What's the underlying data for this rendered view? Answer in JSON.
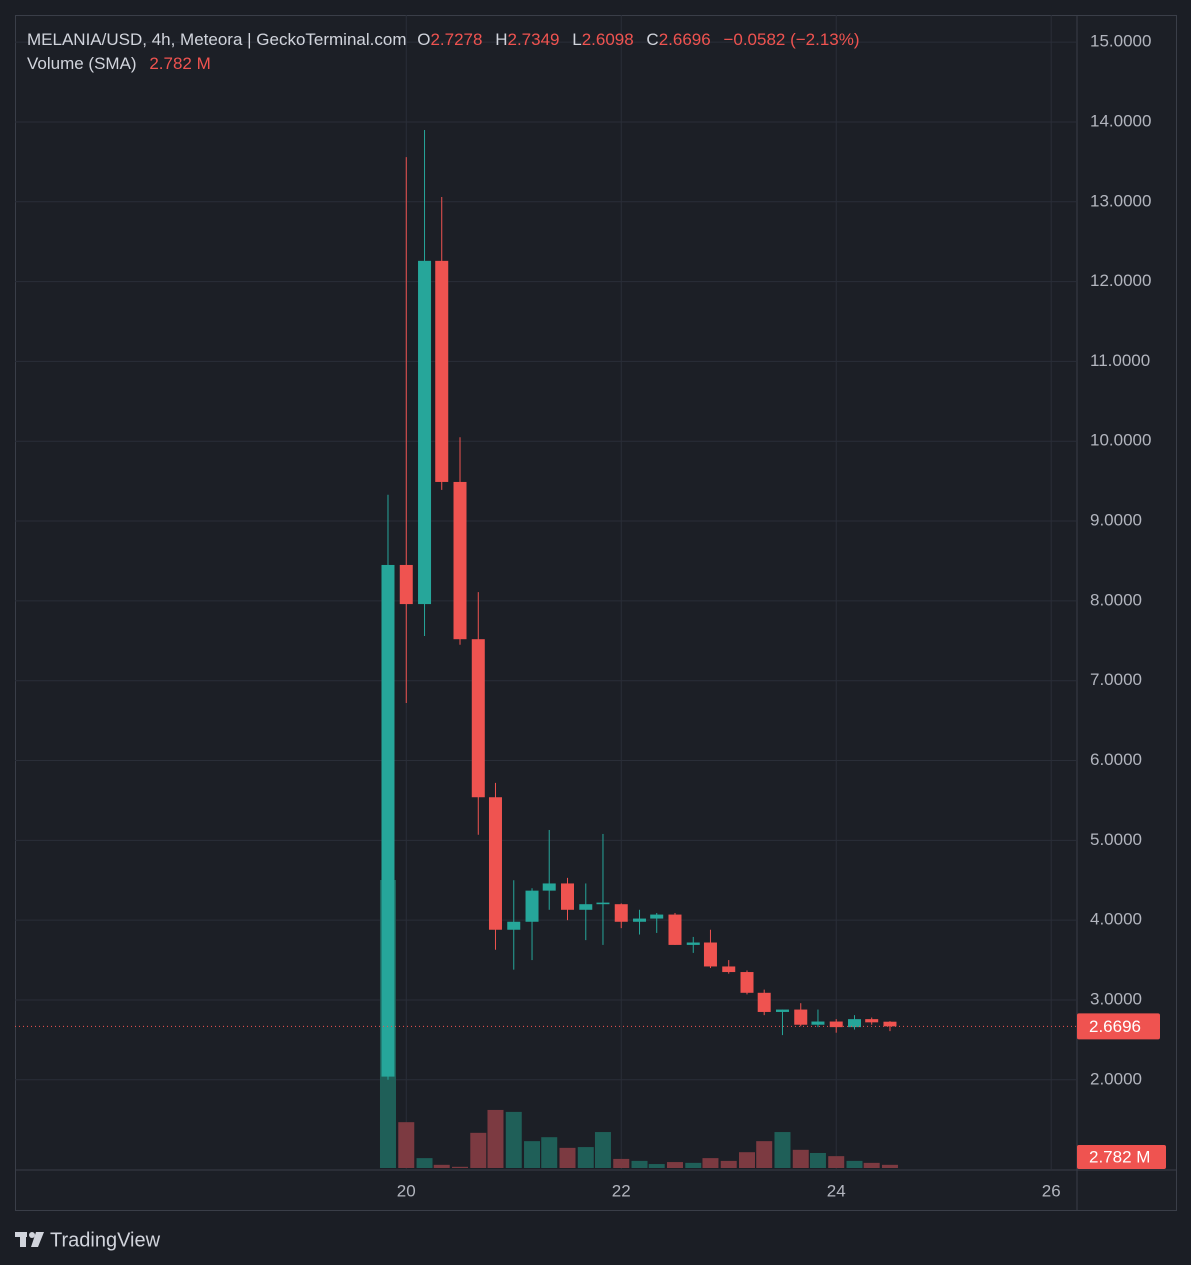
{
  "chart_data": {
    "type": "candlestick",
    "title": "MELANIA/USD, 4h, Meteora | GeckoTerminal.com",
    "ohlc_labels": [
      "O",
      "H",
      "L",
      "C"
    ],
    "change": "−0.0582 (−2.13%)",
    "volume_title": "Volume (SMA)",
    "volume_sma": 2.782,
    "volume_sma_label": "2.782 M",
    "up_color": "#26a69a",
    "down_color": "#ef5350",
    "volume_up_color": "#1f5f58",
    "volume_down_color": "#7c3a41",
    "grid": true,
    "x": [
      19.83,
      20,
      20.17,
      20.33,
      20.5,
      20.67,
      20.83,
      21,
      21.17,
      21.33,
      21.5,
      21.67,
      21.83,
      22,
      22.17,
      22.33,
      22.5,
      22.67,
      22.83,
      23,
      23.17,
      23.33,
      23.5,
      23.67,
      23.83,
      24,
      24.17,
      24.33,
      24.5
    ],
    "open": [
      2.04,
      8.45,
      7.96,
      12.26,
      9.49,
      7.52,
      5.54,
      3.88,
      3.98,
      4.37,
      4.46,
      4.13,
      4.2,
      4.2,
      3.98,
      4.02,
      4.07,
      3.69,
      3.72,
      3.42,
      3.35,
      3.09,
      2.85,
      2.88,
      2.69,
      2.73,
      2.66,
      2.76,
      2.7278
    ],
    "high": [
      9.33,
      13.56,
      13.9,
      13.06,
      10.05,
      8.11,
      5.72,
      4.5,
      4.4,
      5.13,
      4.53,
      4.46,
      5.08,
      4.21,
      4.13,
      4.09,
      4.09,
      3.79,
      3.88,
      3.5,
      3.37,
      3.13,
      2.88,
      2.96,
      2.88,
      2.76,
      2.81,
      2.78,
      2.7349
    ],
    "low": [
      2.0,
      6.72,
      7.56,
      9.39,
      7.45,
      5.07,
      3.63,
      3.38,
      3.5,
      4.13,
      4.0,
      3.75,
      3.69,
      3.9,
      3.82,
      3.84,
      3.69,
      3.59,
      3.4,
      3.33,
      3.07,
      2.81,
      2.56,
      2.67,
      2.66,
      2.59,
      2.63,
      2.69,
      2.6098
    ],
    "close": [
      8.45,
      7.96,
      12.26,
      9.49,
      7.52,
      5.54,
      3.88,
      3.98,
      4.37,
      4.46,
      4.13,
      4.2,
      4.22,
      3.98,
      4.02,
      4.07,
      3.69,
      3.72,
      3.42,
      3.35,
      3.09,
      2.85,
      2.88,
      2.69,
      2.73,
      2.66,
      2.76,
      2.72,
      2.6696
    ],
    "volume": [
      72.9,
      11.6,
      2.5,
      0.8,
      0.3,
      8.9,
      14.7,
      14.2,
      6.8,
      7.8,
      5.1,
      5.3,
      9.1,
      2.3,
      1.8,
      1.0,
      1.5,
      1.3,
      2.5,
      1.8,
      4.0,
      6.8,
      9.1,
      4.6,
      3.8,
      3.0,
      1.8,
      1.3,
      0.8
    ],
    "xlim": [
      16.36,
      26.24
    ],
    "xticks": [
      20,
      22,
      24,
      26
    ],
    "ylim": [
      0.87,
      15.34
    ],
    "yticks": [
      {
        "value": 2,
        "label": "2.0000"
      },
      {
        "value": 3,
        "label": "3.0000"
      },
      {
        "value": 4,
        "label": "4.0000"
      },
      {
        "value": 5,
        "label": "5.0000"
      },
      {
        "value": 6,
        "label": "6.0000"
      },
      {
        "value": 7,
        "label": "7.0000"
      },
      {
        "value": 8,
        "label": "8.0000"
      },
      {
        "value": 9,
        "label": "9.0000"
      },
      {
        "value": 10,
        "label": "10.0000"
      },
      {
        "value": 11,
        "label": "11.0000"
      },
      {
        "value": 12,
        "label": "12.0000"
      },
      {
        "value": 13,
        "label": "13.0000"
      },
      {
        "value": 14,
        "label": "14.0000"
      },
      {
        "value": 15,
        "label": "15.0000"
      }
    ]
  },
  "brand": "TradingView"
}
